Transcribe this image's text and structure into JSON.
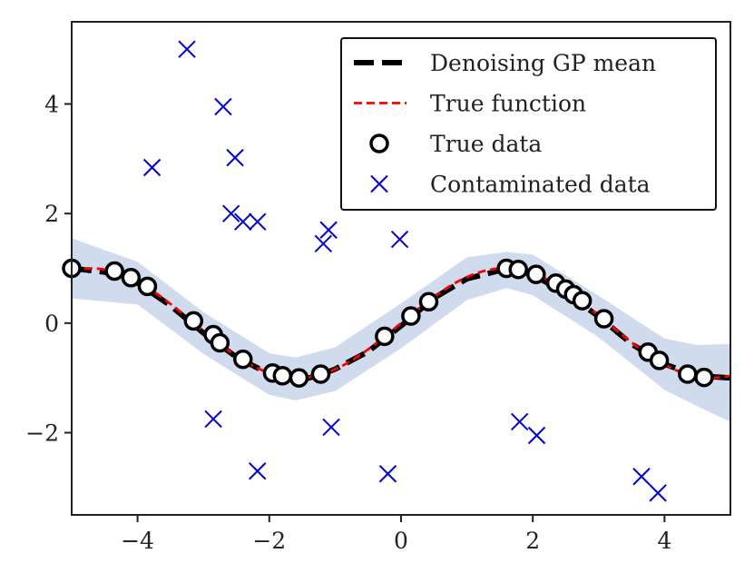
{
  "chart_data": {
    "type": "scatter",
    "title": "",
    "xlabel": "",
    "ylabel": "",
    "xlim": [
      -5,
      5
    ],
    "ylim": [
      -3.5,
      5.5
    ],
    "xticks": [
      -4,
      -2,
      0,
      2,
      4
    ],
    "xtick_labels": [
      "−4",
      "−2",
      "0",
      "2",
      "4"
    ],
    "yticks": [
      -2,
      0,
      2,
      4
    ],
    "ytick_labels": [
      "−2",
      "0",
      "2",
      "4"
    ],
    "grid": false,
    "legend_position": "top-right",
    "series": [
      {
        "name": "Denoising GP mean",
        "kind": "line",
        "style": "dashed-thick",
        "color": "#000000",
        "x": [
          -5.0,
          -4.5,
          -4.0,
          -3.5,
          -3.0,
          -2.5,
          -2.0,
          -1.8,
          -1.6,
          -1.4,
          -1.2,
          -1.0,
          -0.5,
          0.0,
          0.5,
          1.0,
          1.5,
          1.6,
          1.8,
          2.0,
          2.5,
          3.0,
          3.5,
          4.0,
          4.5,
          5.0
        ],
        "y": [
          1.0,
          0.93,
          0.73,
          0.32,
          -0.18,
          -0.62,
          -0.93,
          -0.99,
          -1.02,
          -1.0,
          -0.93,
          -0.84,
          -0.52,
          -0.05,
          0.46,
          0.81,
          0.96,
          0.97,
          0.95,
          0.88,
          0.55,
          0.12,
          -0.38,
          -0.75,
          -0.96,
          -1.0
        ]
      },
      {
        "name": "GP uncertainty band",
        "kind": "band",
        "color": "#c8d6ea",
        "x": [
          -5.0,
          -4.0,
          -3.0,
          -2.0,
          -1.6,
          -1.0,
          0.0,
          1.0,
          1.6,
          2.0,
          3.0,
          4.0,
          4.5,
          5.0
        ],
        "upper": [
          1.55,
          1.12,
          0.2,
          -0.55,
          -0.63,
          -0.44,
          0.36,
          1.2,
          1.3,
          1.25,
          0.5,
          -0.28,
          -0.4,
          -0.38
        ],
        "lower": [
          0.45,
          0.34,
          -0.56,
          -1.31,
          -1.41,
          -1.24,
          -0.46,
          0.42,
          0.64,
          0.51,
          -0.26,
          -1.22,
          -1.52,
          -1.8
        ]
      },
      {
        "name": "True function",
        "kind": "line",
        "style": "dashed-thin",
        "color": "#ff0000",
        "function": "sin"
      },
      {
        "name": "True data",
        "kind": "scatter",
        "marker": "circle",
        "color": "#000000",
        "points": [
          [
            -5.0,
            1.0
          ],
          [
            -4.35,
            0.95
          ],
          [
            -4.1,
            0.83
          ],
          [
            -3.85,
            0.67
          ],
          [
            -3.15,
            0.04
          ],
          [
            -2.85,
            -0.21
          ],
          [
            -2.75,
            -0.36
          ],
          [
            -2.4,
            -0.66
          ],
          [
            -1.95,
            -0.91
          ],
          [
            -1.8,
            -0.96
          ],
          [
            -1.55,
            -1.0
          ],
          [
            -1.22,
            -0.93
          ],
          [
            -0.25,
            -0.24
          ],
          [
            0.15,
            0.13
          ],
          [
            0.42,
            0.39
          ],
          [
            1.6,
            1.0
          ],
          [
            1.78,
            0.98
          ],
          [
            2.05,
            0.89
          ],
          [
            2.35,
            0.73
          ],
          [
            2.5,
            0.62
          ],
          [
            2.62,
            0.52
          ],
          [
            2.75,
            0.41
          ],
          [
            3.08,
            0.08
          ],
          [
            3.75,
            -0.53
          ],
          [
            3.92,
            -0.68
          ],
          [
            4.35,
            -0.93
          ],
          [
            4.6,
            -0.99
          ]
        ]
      },
      {
        "name": "Contaminated data",
        "kind": "scatter",
        "marker": "x",
        "color": "#0000dd",
        "points": [
          [
            -3.25,
            5.0
          ],
          [
            -2.7,
            3.95
          ],
          [
            -2.52,
            3.02
          ],
          [
            -3.78,
            2.84
          ],
          [
            -2.58,
            2.0
          ],
          [
            -2.4,
            1.85
          ],
          [
            -2.18,
            1.85
          ],
          [
            -1.1,
            1.7
          ],
          [
            -1.18,
            1.45
          ],
          [
            -0.02,
            1.53
          ],
          [
            -2.85,
            -1.75
          ],
          [
            -1.06,
            -1.9
          ],
          [
            1.8,
            -1.8
          ],
          [
            2.06,
            -2.05
          ],
          [
            -2.18,
            -2.7
          ],
          [
            -0.2,
            -2.75
          ],
          [
            3.65,
            -2.8
          ],
          [
            3.9,
            -3.1
          ]
        ]
      }
    ],
    "legend": [
      {
        "label": "Denoising GP mean",
        "symbol": "dash-thick",
        "color": "#000000"
      },
      {
        "label": "True function",
        "symbol": "dash-thin",
        "color": "#ff0000"
      },
      {
        "label": "True data",
        "symbol": "circle",
        "color": "#000000"
      },
      {
        "label": "Contaminated data",
        "symbol": "x",
        "color": "#0000dd"
      }
    ]
  }
}
